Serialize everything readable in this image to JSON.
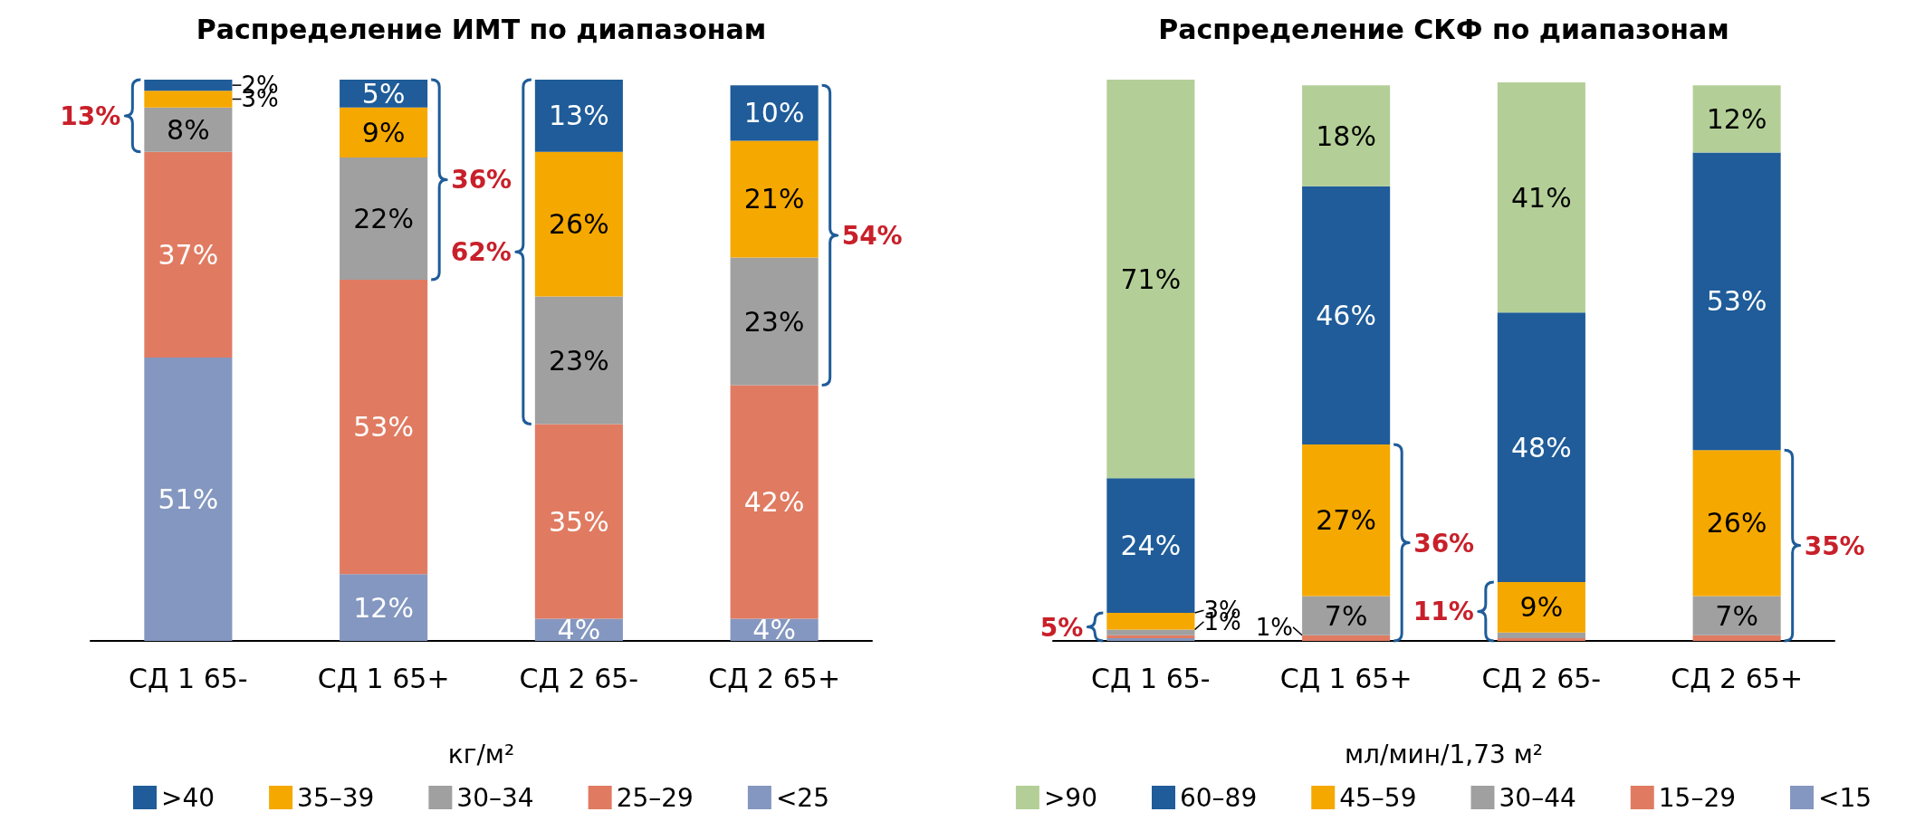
{
  "chart_data": [
    {
      "type": "bar",
      "stacked": true,
      "title": "Распределение ИМТ по диапазонам",
      "legend_title": "кг/м²",
      "legend": "bottom",
      "categories": [
        "СД 1 65-",
        "СД 1 65+",
        "СД 2 65-",
        "СД 2 65+"
      ],
      "series": [
        {
          "name": "<25",
          "color": "#8497c0",
          "values": [
            51,
            12,
            4,
            4
          ],
          "value_labels": [
            "51%",
            "12%",
            "4%",
            "4%"
          ]
        },
        {
          "name": "25–29",
          "color": "#e07b62",
          "values": [
            37,
            53,
            35,
            42
          ],
          "value_labels": [
            "37%",
            "53%",
            "35%",
            "42%"
          ]
        },
        {
          "name": "30–34",
          "color": "#a0a0a0",
          "values": [
            8,
            22,
            23,
            23
          ],
          "value_labels": [
            "8%",
            "22%",
            "23%",
            "23%"
          ]
        },
        {
          "name": "35–39",
          "color": "#f5a800",
          "values": [
            3,
            9,
            26,
            21
          ],
          "value_labels": [
            "3%",
            "9%",
            "26%",
            "21%"
          ]
        },
        {
          "name": ">40",
          "color": "#1f5c99",
          "values": [
            2,
            5,
            13,
            10
          ],
          "value_labels": [
            "2%",
            "5%",
            "13%",
            "10%"
          ]
        }
      ],
      "annotations": [
        "13%",
        "36%",
        "62%",
        "54%"
      ]
    },
    {
      "type": "bar",
      "stacked": true,
      "title": "Распределение СКФ по диапазонам",
      "legend_title": "мл/мин/1,73 м²",
      "legend": "bottom",
      "categories": [
        "СД 1 65-",
        "СД 1 65+",
        "СД 2 65-",
        "СД 2 65+"
      ],
      "series": [
        {
          "name": "<15",
          "color": "#8497c0",
          "values": [
            0.5,
            null,
            null,
            null
          ],
          "value_labels": [
            null,
            null,
            null,
            null
          ]
        },
        {
          "name": "15–29",
          "color": "#e07b62",
          "values": [
            0.5,
            1,
            0.5,
            1
          ],
          "value_labels": [
            null,
            "1%",
            null,
            null
          ]
        },
        {
          "name": "30–44",
          "color": "#a0a0a0",
          "values": [
            1,
            7,
            1,
            7
          ],
          "value_labels": [
            "1%",
            "7%",
            null,
            "7%"
          ]
        },
        {
          "name": "45–59",
          "color": "#f5a800",
          "values": [
            3,
            27,
            9,
            26
          ],
          "value_labels": [
            "3%",
            "27%",
            "9%",
            "26%"
          ]
        },
        {
          "name": "60–89",
          "color": "#1f5c99",
          "values": [
            24,
            46,
            48,
            53
          ],
          "value_labels": [
            "24%",
            "46%",
            "48%",
            "53%"
          ]
        },
        {
          "name": ">90",
          "color": "#b3cf97",
          "values": [
            71,
            18,
            41,
            12
          ],
          "value_labels": [
            "71%",
            "18%",
            "41%",
            "12%"
          ]
        }
      ],
      "annotations": [
        "5%",
        "36%",
        "11%",
        "35%"
      ]
    }
  ]
}
